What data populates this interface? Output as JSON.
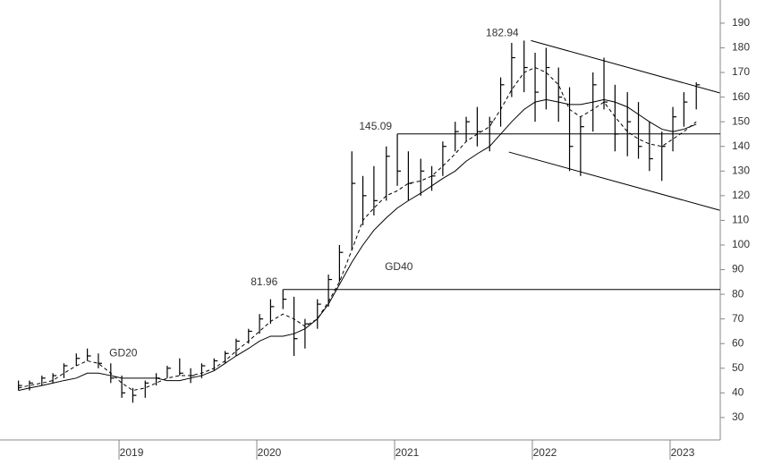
{
  "chart_data": {
    "type": "ohlc",
    "x": [
      2018.27,
      2018.35,
      2018.44,
      2018.52,
      2018.6,
      2018.69,
      2018.77,
      2018.85,
      2018.94,
      2019.02,
      2019.1,
      2019.19,
      2019.27,
      2019.35,
      2019.44,
      2019.52,
      2019.6,
      2019.69,
      2019.77,
      2019.85,
      2019.94,
      2020.02,
      2020.1,
      2020.19,
      2020.27,
      2020.35,
      2020.44,
      2020.52,
      2020.6,
      2020.69,
      2020.77,
      2020.85,
      2020.94,
      2021.02,
      2021.1,
      2021.19,
      2021.27,
      2021.35,
      2021.44,
      2021.52,
      2021.6,
      2021.69,
      2021.77,
      2021.85,
      2021.94,
      2022.02,
      2022.1,
      2022.19,
      2022.27,
      2022.35,
      2022.44,
      2022.52,
      2022.6,
      2022.69,
      2022.77,
      2022.85,
      2022.94,
      2023.02,
      2023.1,
      2023.19
    ],
    "high": [
      45,
      45,
      47,
      48,
      52,
      56,
      58,
      56,
      52,
      47,
      42,
      45,
      48,
      51,
      54,
      50,
      52,
      54,
      57,
      62,
      66,
      72,
      78,
      81.96,
      79,
      70,
      78,
      88,
      100,
      138,
      128,
      132,
      140,
      145.09,
      138,
      135,
      132,
      142,
      150,
      152,
      156,
      152,
      168,
      182,
      182.94,
      178,
      180,
      172,
      164,
      152,
      170,
      176,
      165,
      162,
      158,
      150,
      146,
      156,
      162,
      166
    ],
    "low": [
      41,
      41,
      43,
      44,
      46,
      51,
      53,
      50,
      44,
      38,
      36,
      38,
      43,
      46,
      47,
      44,
      46,
      49,
      52,
      55,
      60,
      64,
      68,
      74,
      55,
      58,
      66,
      75,
      85,
      98,
      108,
      112,
      118,
      124,
      118,
      120,
      122,
      128,
      138,
      142,
      140,
      138,
      148,
      160,
      162,
      150,
      155,
      150,
      130,
      128,
      146,
      155,
      138,
      136,
      135,
      130,
      126,
      138,
      148,
      155
    ],
    "close": [
      43,
      44,
      46,
      47,
      51,
      54,
      55,
      52,
      46,
      40,
      39,
      44,
      46,
      50,
      48,
      47,
      51,
      53,
      56,
      61,
      65,
      70,
      75,
      78,
      62,
      68,
      76,
      86,
      97,
      125,
      120,
      118,
      136,
      130,
      125,
      130,
      128,
      140,
      146,
      150,
      146,
      150,
      165,
      176,
      172,
      162,
      172,
      160,
      140,
      148,
      165,
      158,
      145,
      150,
      140,
      135,
      140,
      152,
      158,
      165
    ],
    "color": "#000000",
    "series": [
      {
        "name": "GD20",
        "dash": true,
        "values": [
          42,
          43,
          44,
          45,
          48,
          51,
          53,
          52,
          48,
          44,
          41,
          42,
          44,
          46,
          47,
          47,
          48,
          50,
          53,
          57,
          61,
          65,
          69,
          72,
          70,
          67,
          70,
          77,
          85,
          98,
          110,
          115,
          120,
          122,
          125,
          126,
          128,
          132,
          137,
          142,
          145,
          148,
          155,
          163,
          170,
          172,
          170,
          165,
          155,
          152,
          155,
          158,
          152,
          146,
          143,
          141,
          140,
          143,
          146,
          150
        ]
      },
      {
        "name": "GD40",
        "dash": false,
        "values": [
          41,
          42,
          43,
          44,
          45,
          46,
          48,
          48,
          47,
          46,
          46,
          46,
          46,
          45,
          45,
          46,
          47,
          49,
          52,
          55,
          58,
          61,
          63,
          63,
          64,
          66,
          70,
          76,
          84,
          93,
          100,
          106,
          111,
          115,
          118,
          121,
          124,
          127,
          130,
          134,
          137,
          140,
          145,
          150,
          155,
          158,
          159,
          158,
          157,
          157,
          158,
          159,
          158,
          156,
          153,
          150,
          147,
          146,
          147,
          149
        ]
      }
    ],
    "levels": [
      {
        "value": 81.96,
        "line": true
      },
      {
        "value": 145.09,
        "line": true
      },
      {
        "value": 182.94,
        "line": false
      }
    ],
    "channel": [
      {
        "x": [
          2021.99,
          2023.36
        ],
        "y": [
          182.94,
          161.7
        ]
      },
      {
        "x": [
          2021.83,
          2023.36
        ],
        "y": [
          137.7,
          114.1
        ]
      }
    ],
    "xlim": [
      2018.136,
      2023.364
    ],
    "xticks": [
      2019,
      2020,
      2021,
      2022,
      2023
    ],
    "ylim": [
      20.9,
      199.4
    ],
    "yticks": [
      30,
      40,
      50,
      60,
      70,
      80,
      90,
      100,
      110,
      120,
      130,
      140,
      150,
      160,
      170,
      180,
      190
    ]
  }
}
